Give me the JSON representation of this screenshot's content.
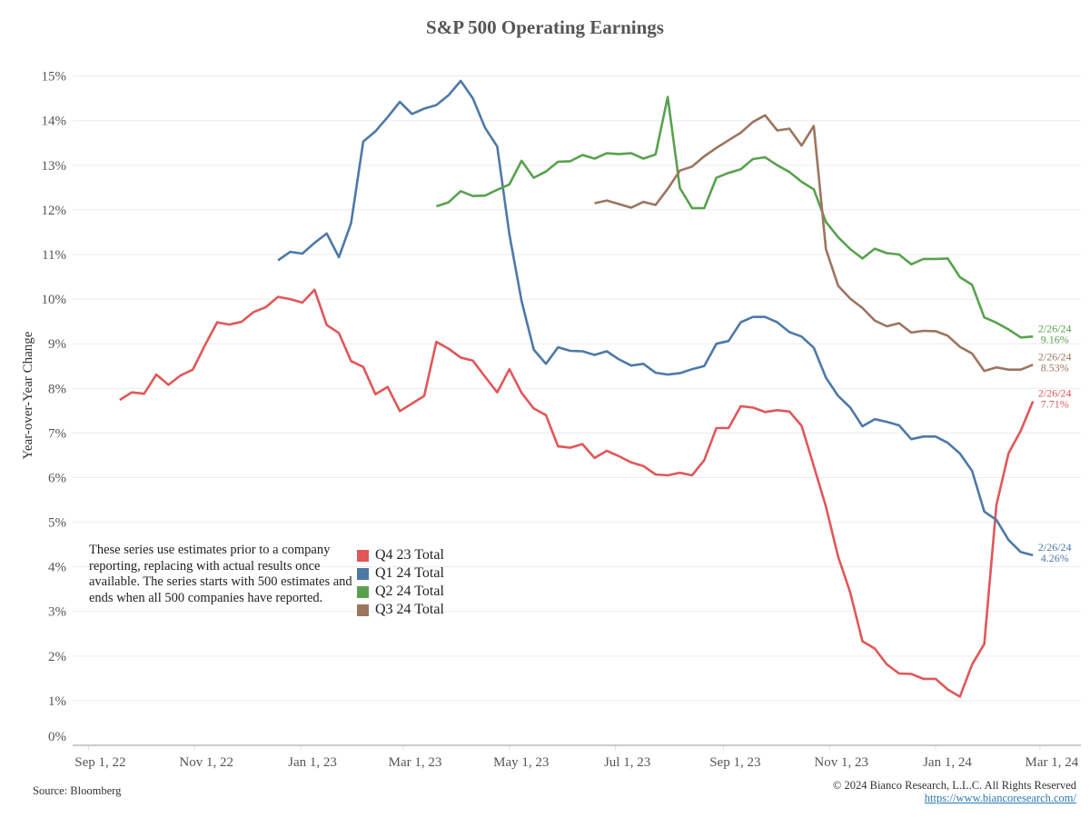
{
  "chart_data": {
    "type": "line",
    "title": "S&P 500 Operating Earnings",
    "xlabel": "",
    "ylabel": "Year-over-Year Change",
    "ylim": [
      0,
      15
    ],
    "yticks": [
      "0%",
      "1%",
      "2%",
      "3%",
      "4%",
      "5%",
      "6%",
      "7%",
      "8%",
      "9%",
      "10%",
      "11%",
      "12%",
      "13%",
      "14%",
      "15%"
    ],
    "xticks": [
      {
        "date": "2022-09-01",
        "label": "Sep 1, 22"
      },
      {
        "date": "2022-11-01",
        "label": "Nov 1, 22"
      },
      {
        "date": "2023-01-01",
        "label": "Jan 1, 23"
      },
      {
        "date": "2023-03-01",
        "label": "Mar 1, 23"
      },
      {
        "date": "2023-05-01",
        "label": "May 1, 23"
      },
      {
        "date": "2023-07-01",
        "label": "Jul 1, 23"
      },
      {
        "date": "2023-09-01",
        "label": "Sep 1, 23"
      },
      {
        "date": "2023-11-01",
        "label": "Nov 1, 23"
      },
      {
        "date": "2024-01-01",
        "label": "Jan 1, 24"
      },
      {
        "date": "2024-03-01",
        "label": "Mar 1, 24"
      }
    ],
    "grid": true,
    "legend_placement": "bottom-left",
    "x": [
      "2022-09-19",
      "2022-09-26",
      "2022-10-03",
      "2022-10-10",
      "2022-10-17",
      "2022-10-24",
      "2022-10-31",
      "2022-11-07",
      "2022-11-14",
      "2022-11-21",
      "2022-11-28",
      "2022-12-05",
      "2022-12-12",
      "2022-12-19",
      "2022-12-26",
      "2023-01-02",
      "2023-01-09",
      "2023-01-16",
      "2023-01-23",
      "2023-01-30",
      "2023-02-06",
      "2023-02-13",
      "2023-02-20",
      "2023-02-27",
      "2023-03-06",
      "2023-03-13",
      "2023-03-20",
      "2023-03-27",
      "2023-04-03",
      "2023-04-10",
      "2023-04-17",
      "2023-04-24",
      "2023-05-01",
      "2023-05-08",
      "2023-05-15",
      "2023-05-22",
      "2023-05-29",
      "2023-06-05",
      "2023-06-12",
      "2023-06-19",
      "2023-06-26",
      "2023-07-03",
      "2023-07-10",
      "2023-07-17",
      "2023-07-24",
      "2023-07-31",
      "2023-08-07",
      "2023-08-14",
      "2023-08-21",
      "2023-08-28",
      "2023-09-04",
      "2023-09-11",
      "2023-09-18",
      "2023-09-25",
      "2023-10-02",
      "2023-10-09",
      "2023-10-16",
      "2023-10-23",
      "2023-10-30",
      "2023-11-06",
      "2023-11-13",
      "2023-11-20",
      "2023-11-27",
      "2023-12-04",
      "2023-12-11",
      "2023-12-18",
      "2023-12-25",
      "2024-01-01",
      "2024-01-08",
      "2024-01-15",
      "2024-01-22",
      "2024-01-29",
      "2024-02-05",
      "2024-02-12",
      "2024-02-19",
      "2024-02-26"
    ],
    "series": [
      {
        "name": "Q4 23 Total",
        "color": "#e15759",
        "end_date": "2/26/24",
        "end_value": "7.71%",
        "values": [
          7.74,
          7.91,
          7.88,
          8.31,
          8.08,
          8.29,
          8.42,
          8.97,
          9.48,
          9.43,
          9.49,
          9.71,
          9.82,
          10.05,
          10.0,
          9.92,
          10.21,
          9.42,
          9.24,
          8.61,
          8.48,
          7.87,
          8.03,
          7.49,
          7.66,
          7.83,
          9.04,
          8.89,
          8.69,
          8.62,
          8.26,
          7.91,
          8.43,
          7.9,
          7.55,
          7.4,
          6.7,
          6.67,
          6.75,
          6.44,
          6.6,
          6.48,
          6.34,
          6.26,
          6.07,
          6.05,
          6.11,
          6.05,
          6.39,
          7.11,
          7.11,
          7.6,
          7.57,
          7.47,
          7.51,
          7.48,
          7.16,
          6.26,
          5.35,
          4.23,
          3.42,
          2.33,
          2.17,
          1.81,
          1.61,
          1.6,
          1.49,
          1.49,
          1.25,
          1.09,
          1.81,
          2.27,
          5.39,
          6.55,
          7.05,
          7.71
        ]
      },
      {
        "name": "Q1 24 Total",
        "color": "#4e79a7",
        "end_date": "2/26/24",
        "end_value": "4.26%",
        "values": [
          null,
          null,
          null,
          null,
          null,
          null,
          null,
          null,
          null,
          null,
          null,
          null,
          null,
          10.87,
          11.06,
          11.02,
          11.26,
          11.47,
          10.94,
          11.7,
          13.53,
          13.76,
          14.08,
          14.42,
          14.15,
          14.27,
          14.35,
          14.57,
          14.89,
          14.5,
          13.84,
          13.42,
          11.45,
          9.96,
          8.87,
          8.55,
          8.92,
          8.84,
          8.83,
          8.75,
          8.83,
          8.65,
          8.51,
          8.55,
          8.35,
          8.31,
          8.34,
          8.43,
          8.5,
          9.0,
          9.06,
          9.48,
          9.6,
          9.6,
          9.48,
          9.26,
          9.16,
          8.91,
          8.24,
          7.83,
          7.57,
          7.15,
          7.31,
          7.25,
          7.17,
          6.86,
          6.92,
          6.92,
          6.78,
          6.54,
          6.15,
          5.24,
          5.05,
          4.6,
          4.33,
          4.26
        ]
      },
      {
        "name": "Q2 24 Total",
        "color": "#59a14f",
        "end_date": "2/26/24",
        "end_value": "9.16%",
        "values": [
          null,
          null,
          null,
          null,
          null,
          null,
          null,
          null,
          null,
          null,
          null,
          null,
          null,
          null,
          null,
          null,
          null,
          null,
          null,
          null,
          null,
          null,
          null,
          null,
          null,
          null,
          12.08,
          12.17,
          12.42,
          12.31,
          12.32,
          12.45,
          12.57,
          13.1,
          12.72,
          12.86,
          13.08,
          13.09,
          13.23,
          13.15,
          13.27,
          13.25,
          13.27,
          13.15,
          13.24,
          14.53,
          12.49,
          12.04,
          12.04,
          12.72,
          12.83,
          12.91,
          13.14,
          13.18,
          13.0,
          12.85,
          12.63,
          12.46,
          11.73,
          11.39,
          11.12,
          10.91,
          11.13,
          11.03,
          11.0,
          10.78,
          10.9,
          10.9,
          10.91,
          10.49,
          10.32,
          9.59,
          9.47,
          9.32,
          9.14,
          9.16
        ]
      },
      {
        "name": "Q3 24 Total",
        "color": "#9c755f",
        "end_date": "2/26/24",
        "end_value": "8.53%",
        "values": [
          null,
          null,
          null,
          null,
          null,
          null,
          null,
          null,
          null,
          null,
          null,
          null,
          null,
          null,
          null,
          null,
          null,
          null,
          null,
          null,
          null,
          null,
          null,
          null,
          null,
          null,
          null,
          null,
          null,
          null,
          null,
          null,
          null,
          null,
          null,
          null,
          null,
          null,
          null,
          12.15,
          12.21,
          12.13,
          12.05,
          12.18,
          12.11,
          12.47,
          12.88,
          12.97,
          13.2,
          13.39,
          13.56,
          13.73,
          13.97,
          14.12,
          13.78,
          13.82,
          13.44,
          13.88,
          11.12,
          10.3,
          10.01,
          9.8,
          9.52,
          9.39,
          9.46,
          9.25,
          9.29,
          9.28,
          9.18,
          8.93,
          8.78,
          8.39,
          8.47,
          8.42,
          8.42,
          8.53
        ]
      }
    ]
  },
  "annotation": "These series use estimates prior to a company reporting, replacing with actual results once available. The series starts with 500 estimates and ends when all 500 companies have reported.",
  "footer": {
    "source": "Source: Bloomberg",
    "copyright": "© 2024 Bianco Research, L.L.C. All Rights Reserved",
    "link": "https://www.biancoresearch.com/"
  }
}
